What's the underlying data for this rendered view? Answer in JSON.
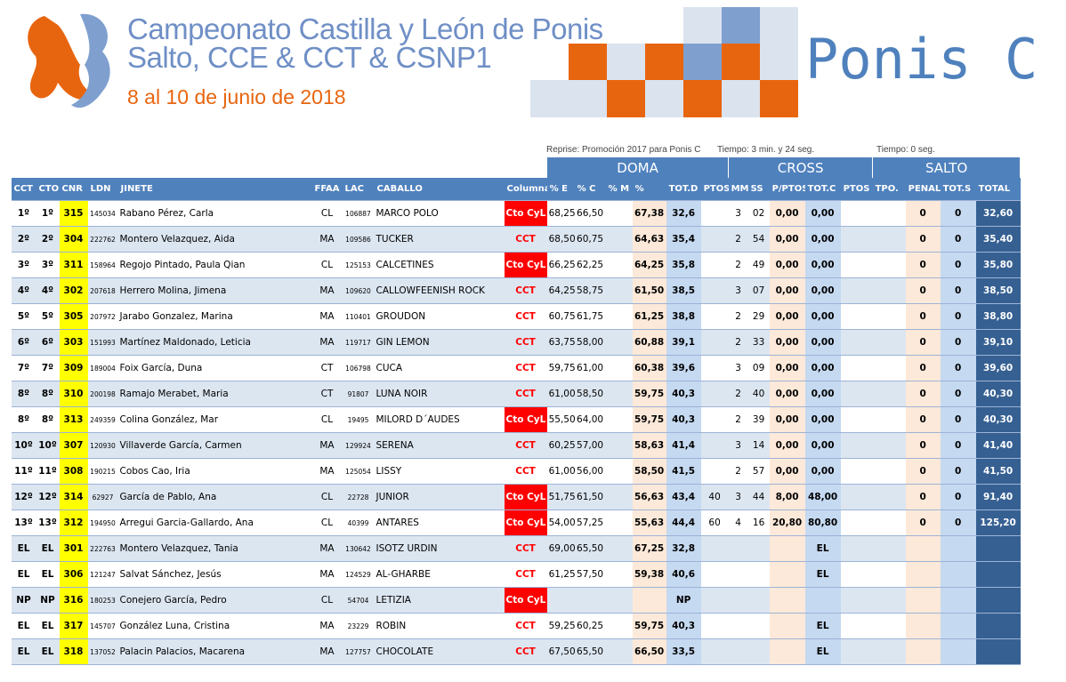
{
  "header": {
    "title_line1": "Campeonato Castilla y León de Ponis",
    "title_line2": "Salto, CCE & CCT & CSNP1",
    "date": "8 al 10 de junio de 2018",
    "category": "Ponis C"
  },
  "table": {
    "info": [
      "Reprise: Promoción 2017 para Ponis C",
      "Tiempo: 3 min. y 24 seg.",
      "Tiempo: 0 seg."
    ],
    "groups": [
      "DOMA",
      "CROSS",
      "SALTO"
    ],
    "columns": [
      "CCT",
      "CTO",
      "CNR",
      "LDN",
      "JINETE",
      "FFAA",
      "LAC",
      "CABALLO",
      "Columna1",
      "% E",
      "% C",
      "% M",
      "%",
      "TOT.D",
      "PTOS.",
      "MM",
      "SS",
      "P/PTOS",
      "TOT.C",
      "PTOS",
      "TPO.",
      "PENAL.",
      "TOT.S",
      "TOTAL"
    ],
    "rows": [
      [
        "1º",
        "1º",
        "315",
        "145034",
        "Rabano Pérez, Carla",
        "CL",
        "106887",
        "MARCO POLO",
        "Cto CyL",
        "68,25",
        "66,50",
        null,
        "67,38",
        "32,6",
        null,
        "3",
        "02",
        "0,00",
        "0,00",
        null,
        null,
        "0",
        "0",
        "32,60"
      ],
      [
        "2º",
        "2º",
        "304",
        "222762",
        "Montero Velazquez, Aida",
        "MA",
        "109586",
        "TUCKER",
        "CCT",
        "68,50",
        "60,75",
        null,
        "64,63",
        "35,4",
        null,
        "2",
        "54",
        "0,00",
        "0,00",
        null,
        null,
        "0",
        "0",
        "35,40"
      ],
      [
        "3º",
        "3º",
        "311",
        "158964",
        "Regojo Pintado, Paula Qian",
        "CL",
        "125153",
        "CALCETINES",
        "Cto CyL",
        "66,25",
        "62,25",
        null,
        "64,25",
        "35,8",
        null,
        "2",
        "49",
        "0,00",
        "0,00",
        null,
        null,
        "0",
        "0",
        "35,80"
      ],
      [
        "4º",
        "4º",
        "302",
        "207618",
        "Herrero Molina, Jimena",
        "MA",
        "109620",
        "CALLOWFEENISH ROCK",
        "CCT",
        "64,25",
        "58,75",
        null,
        "61,50",
        "38,5",
        null,
        "3",
        "07",
        "0,00",
        "0,00",
        null,
        null,
        "0",
        "0",
        "38,50"
      ],
      [
        "5º",
        "5º",
        "305",
        "207972",
        "Jarabo Gonzalez, Marina",
        "MA",
        "110401",
        "GROUDON",
        "CCT",
        "60,75",
        "61,75",
        null,
        "61,25",
        "38,8",
        null,
        "2",
        "29",
        "0,00",
        "0,00",
        null,
        null,
        "0",
        "0",
        "38,80"
      ],
      [
        "6º",
        "6º",
        "303",
        "151993",
        "Martínez Maldonado, Leticia",
        "MA",
        "119717",
        "GIN LEMON",
        "CCT",
        "63,75",
        "58,00",
        null,
        "60,88",
        "39,1",
        null,
        "2",
        "33",
        "0,00",
        "0,00",
        null,
        null,
        "0",
        "0",
        "39,10"
      ],
      [
        "7º",
        "7º",
        "309",
        "189004",
        "Foix García, Duna",
        "CT",
        "106798",
        "CUCA",
        "CCT",
        "59,75",
        "61,00",
        null,
        "60,38",
        "39,6",
        null,
        "3",
        "09",
        "0,00",
        "0,00",
        null,
        null,
        "0",
        "0",
        "39,60"
      ],
      [
        "8º",
        "8º",
        "310",
        "200198",
        "Ramajo Merabet, Maria",
        "CT",
        "91807",
        "LUNA NOIR",
        "CCT",
        "61,00",
        "58,50",
        null,
        "59,75",
        "40,3",
        null,
        "2",
        "40",
        "0,00",
        "0,00",
        null,
        null,
        "0",
        "0",
        "40,30"
      ],
      [
        "8º",
        "8º",
        "313",
        "249359",
        "Colina González, Mar",
        "CL",
        "19495",
        "MILORD D´AUDES",
        "Cto CyL",
        "55,50",
        "64,00",
        null,
        "59,75",
        "40,3",
        null,
        "2",
        "39",
        "0,00",
        "0,00",
        null,
        null,
        "0",
        "0",
        "40,30"
      ],
      [
        "10º",
        "10º",
        "307",
        "120930",
        "Villaverde García, Carmen",
        "MA",
        "129924",
        "SERENA",
        "CCT",
        "60,25",
        "57,00",
        null,
        "58,63",
        "41,4",
        null,
        "3",
        "14",
        "0,00",
        "0,00",
        null,
        null,
        "0",
        "0",
        "41,40"
      ],
      [
        "11º",
        "11º",
        "308",
        "190215",
        "Cobos Cao, Iria",
        "MA",
        "125054",
        "LISSY",
        "CCT",
        "61,00",
        "56,00",
        null,
        "58,50",
        "41,5",
        null,
        "2",
        "57",
        "0,00",
        "0,00",
        null,
        null,
        "0",
        "0",
        "41,50"
      ],
      [
        "12º",
        "12º",
        "314",
        "62927",
        "García de Pablo, Ana",
        "CL",
        "22728",
        "JUNIOR",
        "Cto CyL",
        "51,75",
        "61,50",
        null,
        "56,63",
        "43,4",
        "40",
        "3",
        "44",
        "8,00",
        "48,00",
        null,
        null,
        "0",
        "0",
        "91,40"
      ],
      [
        "13º",
        "13º",
        "312",
        "194950",
        "Arregui Garcia-Gallardo, Ana",
        "CL",
        "40399",
        "ANTARES",
        "Cto CyL",
        "54,00",
        "57,25",
        null,
        "55,63",
        "44,4",
        "60",
        "4",
        "16",
        "20,80",
        "80,80",
        null,
        null,
        "0",
        "0",
        "125,20"
      ],
      [
        "EL",
        "EL",
        "301",
        "222763",
        "Montero Velazquez, Tania",
        "MA",
        "130642",
        "ISOTZ URDIN",
        "CCT",
        "69,00",
        "65,50",
        null,
        "67,25",
        "32,8",
        null,
        null,
        null,
        null,
        "EL",
        null,
        null,
        null,
        null,
        null
      ],
      [
        "EL",
        "EL",
        "306",
        "121247",
        "Salvat Sánchez, Jesús",
        "MA",
        "124529",
        "AL-GHARBE",
        "CCT",
        "61,25",
        "57,50",
        null,
        "59,38",
        "40,6",
        null,
        null,
        null,
        null,
        "EL",
        null,
        null,
        null,
        null,
        null
      ],
      [
        "NP",
        "NP",
        "316",
        "180253",
        "Conejero García, Pedro",
        "CL",
        "54704",
        "LETIZIA",
        "Cto CyL",
        null,
        null,
        null,
        null,
        "NP",
        null,
        null,
        null,
        null,
        null,
        null,
        null,
        null,
        null,
        null
      ],
      [
        "EL",
        "EL",
        "317",
        "145707",
        "González Luna, Cristina",
        "MA",
        "23229",
        "ROBIN",
        "CCT",
        "59,25",
        "60,25",
        null,
        "59,75",
        "40,3",
        null,
        null,
        null,
        null,
        "EL",
        null,
        null,
        null,
        null,
        null
      ],
      [
        "EL",
        "EL",
        "318",
        "137052",
        "Palacin Palacios, Macarena",
        "MA",
        "127757",
        "CHOCOLATE",
        "CCT",
        "67,50",
        "65,50",
        null,
        "66,50",
        "33,5",
        null,
        null,
        null,
        null,
        "EL",
        null,
        null,
        null,
        null,
        null
      ]
    ]
  }
}
